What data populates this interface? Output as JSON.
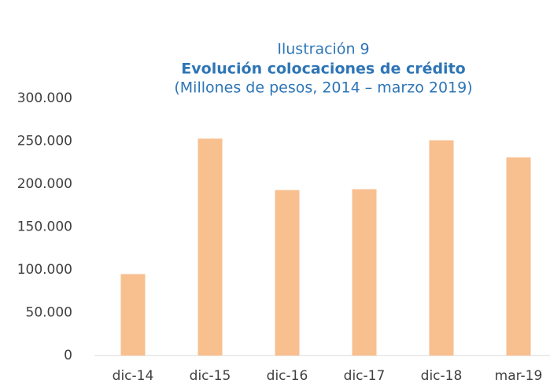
{
  "chart_data": {
    "type": "bar",
    "figure_label": "Ilustración 9",
    "title": "Evolución colocaciones de crédito",
    "subtitle": "(Millones de pesos, 2014 – marzo 2019)",
    "categories": [
      "dic-14",
      "dic-15",
      "dic-16",
      "dic-17",
      "dic-18",
      "mar-19"
    ],
    "values": [
      95000,
      253000,
      193000,
      194000,
      251000,
      231000
    ],
    "color": "#f8bf8f",
    "ylim": [
      0,
      300000
    ],
    "yticks": [
      0,
      {
        "value": 50000,
        "label": "50.000"
      },
      {
        "value": 100000,
        "label": "100.000"
      },
      {
        "value": 150000,
        "label": "150.000"
      },
      {
        "value": 200000,
        "label": "200.000"
      },
      {
        "value": 250000,
        "label": "250.000"
      },
      {
        "value": 300000,
        "label": "300.000"
      }
    ],
    "grid": false
  }
}
